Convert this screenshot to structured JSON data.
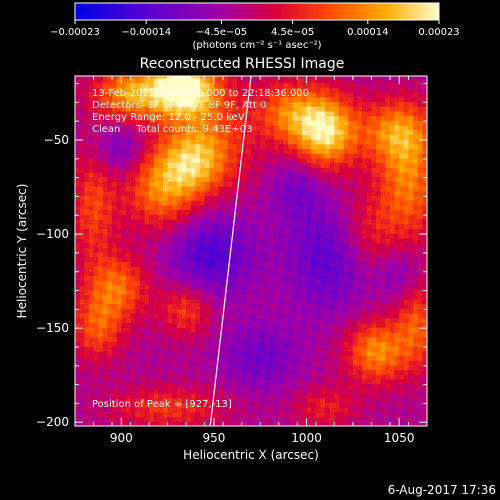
{
  "chart_data": {
    "type": "heatmap",
    "title": "Reconstructed RHESSI Image",
    "xlabel": "Heliocentric X (arcsec)",
    "ylabel": "Heliocentric Y (arcsec)",
    "xlim": [
      875,
      1065
    ],
    "ylim": [
      -202,
      -16
    ],
    "x_ticks": [
      900,
      950,
      1000,
      1050
    ],
    "x_tick_labels": [
      "900",
      "950",
      "1000",
      "1050"
    ],
    "y_ticks": [
      -50,
      -100,
      -150,
      -200
    ],
    "y_tick_labels": [
      "−50",
      "−100",
      "−150",
      "−200"
    ],
    "colorbar": {
      "range": [
        -0.00023,
        0.00023
      ],
      "ticks": [
        -0.00023,
        -0.00014,
        -4.5e-05,
        4.5e-05,
        0.00014,
        0.00023
      ],
      "tick_labels": [
        "−0.00023",
        "−0.00014",
        "−4.5e−05",
        "4.5e−05",
        "0.00014",
        "0.00023"
      ],
      "unit_label": "(photons cm⁻² s⁻¹ asec⁻²)"
    },
    "annotations": [
      "13-Feb-2011 22:08:36.000 to 22:18:36.000",
      "Detectors: 3F 5F 6F 7F 8F 9F, Att 0",
      "Energy Range: 12.0 - 25.0 keV",
      "Clean     Total counts: 9.43E+03"
    ],
    "peak_label": "Position of Peak = [927,-13]",
    "limb_line": {
      "x": [
        948,
        970
      ],
      "y": [
        -202,
        -16
      ]
    },
    "field": {
      "base": -3e-05,
      "blobs": [
        {
          "x": 905,
          "y": -25,
          "sx": 14,
          "sy": 10,
          "amp": 0.00018
        },
        {
          "x": 933,
          "y": -22,
          "sx": 12,
          "sy": 10,
          "amp": 0.00026
        },
        {
          "x": 948,
          "y": -45,
          "sx": 18,
          "sy": 22,
          "amp": 0.00011
        },
        {
          "x": 1010,
          "y": -45,
          "sx": 12,
          "sy": 14,
          "amp": 0.00024
        },
        {
          "x": 990,
          "y": -35,
          "sx": 12,
          "sy": 12,
          "amp": 0.00013
        },
        {
          "x": 1048,
          "y": -45,
          "sx": 14,
          "sy": 12,
          "amp": 0.00014
        },
        {
          "x": 922,
          "y": -75,
          "sx": 14,
          "sy": 16,
          "amp": 0.00016
        },
        {
          "x": 940,
          "y": -62,
          "sx": 12,
          "sy": 12,
          "amp": 0.00012
        },
        {
          "x": 885,
          "y": -85,
          "sx": 9,
          "sy": 22,
          "amp": 0.00011
        },
        {
          "x": 1055,
          "y": -72,
          "sx": 12,
          "sy": 22,
          "amp": 0.00015
        },
        {
          "x": 1032,
          "y": -100,
          "sx": 12,
          "sy": 16,
          "amp": 9e-05
        },
        {
          "x": 898,
          "y": -128,
          "sx": 12,
          "sy": 12,
          "amp": 0.00014
        },
        {
          "x": 887,
          "y": -150,
          "sx": 10,
          "sy": 12,
          "amp": 0.00012
        },
        {
          "x": 935,
          "y": -140,
          "sx": 10,
          "sy": 10,
          "amp": 0.00011
        },
        {
          "x": 1038,
          "y": -162,
          "sx": 12,
          "sy": 12,
          "amp": 0.00017
        },
        {
          "x": 1060,
          "y": -148,
          "sx": 8,
          "sy": 16,
          "amp": 0.00012
        },
        {
          "x": 925,
          "y": -192,
          "sx": 22,
          "sy": 8,
          "amp": 0.0001
        },
        {
          "x": 1010,
          "y": -192,
          "sx": 12,
          "sy": 8,
          "amp": 8e-05
        },
        {
          "x": 948,
          "y": -110,
          "sx": 16,
          "sy": 16,
          "amp": -0.00012
        },
        {
          "x": 1013,
          "y": -112,
          "sx": 16,
          "sy": 20,
          "amp": -0.00011
        },
        {
          "x": 995,
          "y": -75,
          "sx": 10,
          "sy": 12,
          "amp": -7e-05
        },
        {
          "x": 900,
          "y": -55,
          "sx": 10,
          "sy": 10,
          "amp": -8e-05
        },
        {
          "x": 975,
          "y": -165,
          "sx": 14,
          "sy": 12,
          "amp": -8e-05
        },
        {
          "x": 1050,
          "y": -120,
          "sx": 8,
          "sy": 10,
          "amp": -6e-05
        }
      ]
    }
  },
  "footer": {
    "date": "6-Aug-2017 17:36"
  }
}
